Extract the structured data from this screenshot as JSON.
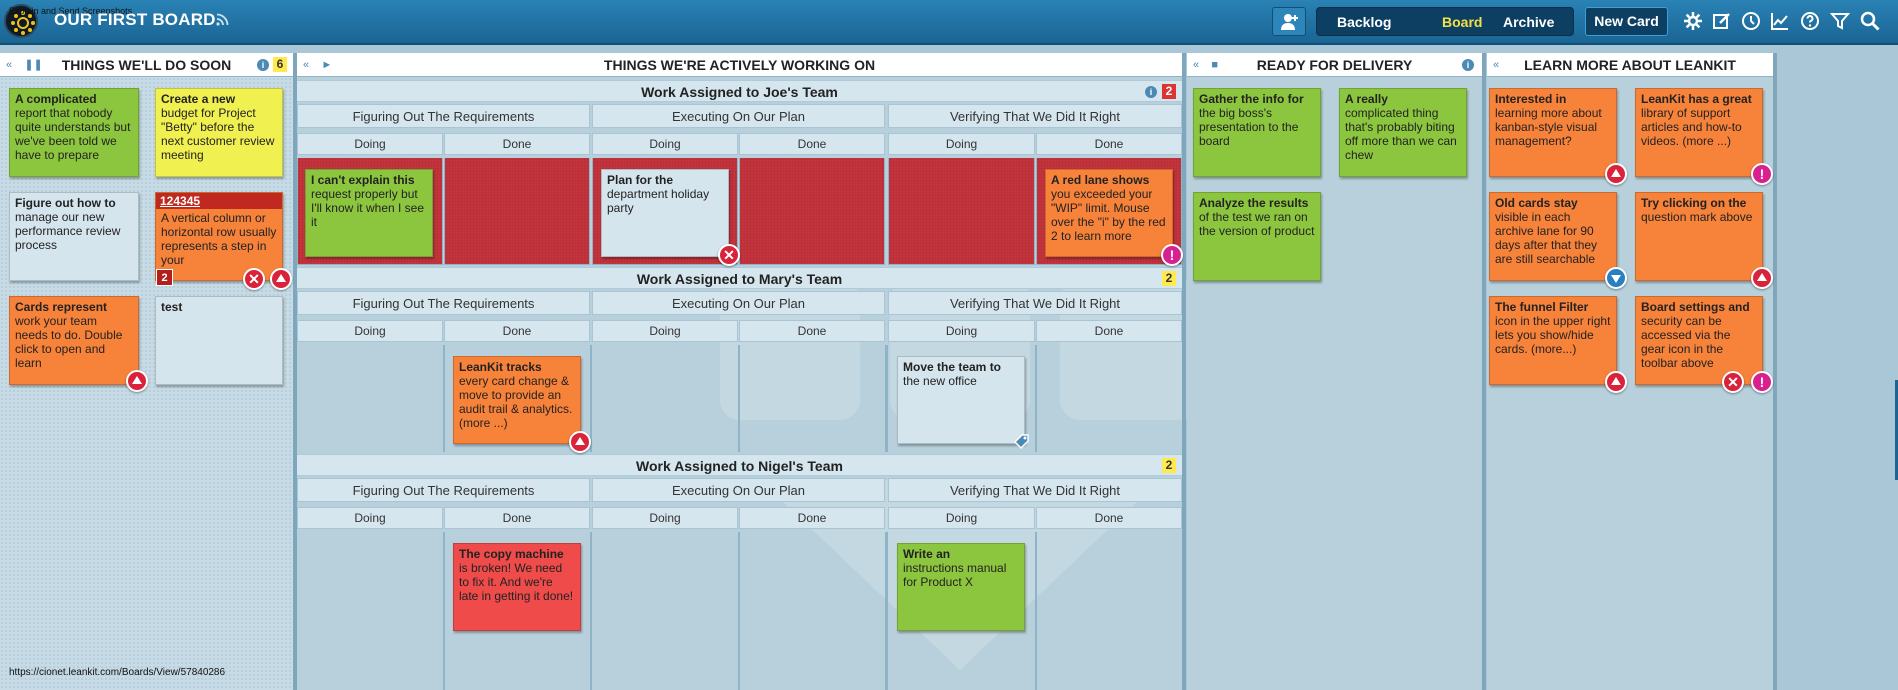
{
  "topbar": {
    "title": "OUR FIRST BOARD",
    "overlay_text": "Explain and Send Screenshots",
    "nav": {
      "backlog": "Backlog",
      "board": "Board",
      "archive": "Archive"
    },
    "new_card": "New Card",
    "icons": [
      "add-user-icon",
      "gear-icon",
      "edit-icon",
      "clock-icon",
      "chart-icon",
      "help-icon",
      "filter-icon",
      "search-icon"
    ]
  },
  "lanes": {
    "soon": {
      "title": "THINGS WE'LL DO SOON",
      "wip": "6"
    },
    "working": {
      "title": "THINGS WE'RE ACTIVELY WORKING ON"
    },
    "ready": {
      "title": "READY FOR DELIVERY"
    },
    "learn": {
      "title": "LEARN MORE ABOUT LEANKIT"
    }
  },
  "subheads": {
    "req": "Figuring Out The Requirements",
    "exec": "Executing On Our Plan",
    "verify": "Verifying That We Did It Right",
    "doing": "Doing",
    "done": "Done"
  },
  "teams": {
    "joe": {
      "title": "Work Assigned to Joe's Team",
      "wip": "2"
    },
    "mary": {
      "title": "Work Assigned to Mary's Team",
      "wip": "2"
    },
    "nigel": {
      "title": "Work Assigned to Nigel's Team",
      "wip": "2"
    }
  },
  "cards": {
    "s1": {
      "title": "A complicated",
      "body": "report that nobody quite understands but we've been told we have to prepare"
    },
    "s2": {
      "title": "Create a new",
      "body": "budget for Project \"Betty\" before the next customer review meeting"
    },
    "s3": {
      "title": "Figure out how to",
      "body": "manage our new performance review process"
    },
    "s4": {
      "id": "124345",
      "body": "A vertical column or horizontal row usually represents a step in your",
      "count": "2"
    },
    "s5": {
      "title": "Cards represent",
      "body": "work your team needs to do. Double click to open and learn"
    },
    "s6": {
      "title": "test",
      "body": ""
    },
    "j1": {
      "title": "I can't explain this",
      "body": "request properly but I'll know it when I see it"
    },
    "j2": {
      "title": "Plan for the",
      "body": "department holiday party"
    },
    "j3": {
      "title": "A red lane shows",
      "body": "you exceeded your \"WIP\" limit. Mouse over the \"i\" by the red 2 to learn more"
    },
    "m1": {
      "title": "LeanKit tracks",
      "body": "every card change & move to provide an audit trail & analytics. (more ...)"
    },
    "m2": {
      "title": "Move the team to",
      "body": "the new office"
    },
    "n1": {
      "title": "The copy machine",
      "body": "is broken! We need to fix it. And we're late in getting it done!"
    },
    "n2": {
      "title": "Write an",
      "body": "instructions manual for Product X"
    },
    "r1": {
      "title": "Gather the info for",
      "body": "the big boss's presentation to the board"
    },
    "r2": {
      "title": "A really",
      "body": "complicated thing that's probably biting off more than we can chew"
    },
    "r3": {
      "title": "Analyze the results",
      "body": "of the test we ran on the version of product"
    },
    "l1": {
      "title": "Interested in",
      "body": "learning more about kanban-style visual management?"
    },
    "l2": {
      "title": "LeanKit has a great",
      "body": "library of support articles and how-to videos. (more ...)"
    },
    "l3": {
      "title": "Old cards stay",
      "body": "visible in each archive lane for 90 days after that they are still searchable"
    },
    "l4": {
      "title": "Try clicking on the",
      "body": "question mark above"
    },
    "l5": {
      "title": "The funnel Filter",
      "body": "icon in the upper right lets you show/hide cards. (more...)"
    },
    "l6": {
      "title": "Board settings and",
      "body": "security can be accessed via the gear icon in the toolbar above"
    }
  },
  "status_url": "https://cionet.leankit.com/Boards/View/57840286"
}
